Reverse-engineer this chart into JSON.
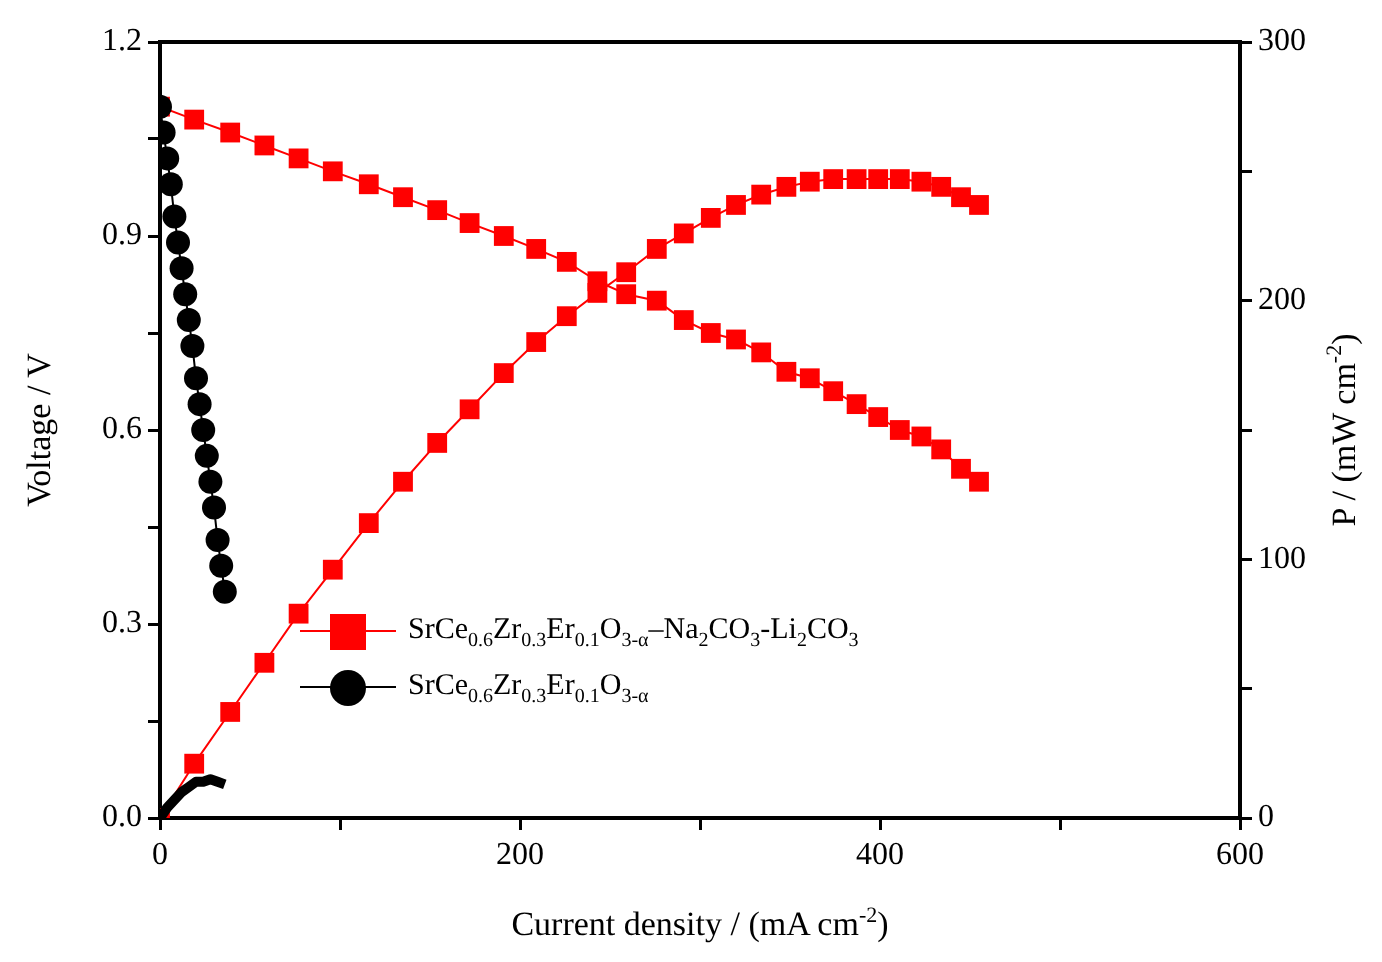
{
  "chart_data": {
    "type": "line",
    "xlabel": "Current density / (mA cm$^{-2}$)",
    "ylabel": "Voltage / V",
    "y2label": "P / (mW cm$^{-2}$)",
    "xlim": [
      0,
      600
    ],
    "xticks": [
      0,
      {
        "value": 100,
        "label": null
      },
      200,
      {
        "value": 300,
        "label": null
      },
      400,
      {
        "value": 500,
        "label": null
      },
      600
    ],
    "ylim": [
      0,
      1.2
    ],
    "yticks": [
      {
        "value": 0,
        "label": "0.0"
      },
      {
        "value": 0.15,
        "label": null
      },
      0.3,
      {
        "value": 0.45,
        "label": null
      },
      0.6,
      {
        "value": 0.75,
        "label": null
      },
      0.9,
      {
        "value": 1.05,
        "label": null
      },
      1.2
    ],
    "y2lim": [
      0,
      300
    ],
    "y2ticks": [
      0,
      {
        "value": 50,
        "label": null
      },
      100,
      {
        "value": 150,
        "label": null
      },
      200,
      {
        "value": 250,
        "label": null
      },
      300
    ],
    "grid": false,
    "legend": "bottom",
    "line_style": "solid",
    "series": [
      {
        "name": "SrCe$_{0.6}$Zr$_{0.3}$Er$_{0.1}$O$_{3-α}$–Na$_{2}$CO$_{3}$-Li$_{2}$CO$_{3}$",
        "color": "#ff0000",
        "marker": "square",
        "x": [
          0,
          19,
          39,
          58,
          77,
          96,
          116,
          135,
          154,
          172,
          191,
          209,
          226,
          243,
          259,
          276,
          291,
          306,
          320,
          334,
          348,
          361,
          374,
          387,
          399,
          411,
          423,
          434,
          445,
          455
        ],
        "values": [
          1.1,
          1.08,
          1.06,
          1.04,
          1.02,
          1.0,
          0.98,
          0.96,
          0.94,
          0.92,
          0.9,
          0.88,
          0.86,
          0.83,
          0.81,
          0.8,
          0.77,
          0.75,
          0.74,
          0.72,
          0.69,
          0.68,
          0.66,
          0.64,
          0.62,
          0.6,
          0.59,
          0.57,
          0.54,
          0.52
        ]
      },
      {
        "color": "#ff0000",
        "marker": "square",
        "axis": "y2",
        "x": [
          0,
          19,
          39,
          58,
          77,
          96,
          116,
          135,
          154,
          172,
          191,
          209,
          226,
          243,
          259,
          276,
          291,
          306,
          320,
          334,
          348,
          361,
          374,
          387,
          399,
          411,
          423,
          434,
          445,
          455
        ],
        "values": [
          0,
          21,
          41,
          60,
          79,
          96,
          114,
          130,
          145,
          158,
          172,
          184,
          194,
          203,
          211,
          220,
          226,
          232,
          237,
          241,
          244,
          246,
          247,
          247,
          247,
          247,
          246,
          244,
          240,
          237
        ]
      },
      {
        "name": "SrCe$_{0.6}$Zr$_{0.3}$Er$_{0.1}$O$_{3-α}$",
        "color": "#000000",
        "marker": "circle",
        "x": [
          0,
          2,
          4,
          6,
          8,
          10,
          12,
          14,
          16,
          18,
          20,
          22,
          24,
          26,
          28,
          30,
          32,
          34,
          36
        ],
        "values": [
          1.1,
          1.06,
          1.02,
          0.98,
          0.93,
          0.89,
          0.85,
          0.81,
          0.77,
          0.73,
          0.68,
          0.64,
          0.6,
          0.56,
          0.52,
          0.48,
          0.43,
          0.39,
          0.35
        ]
      },
      {
        "color": "#000000",
        "marker": "none",
        "axis": "y2",
        "x": [
          0,
          4,
          8,
          12,
          16,
          20,
          24,
          28,
          32,
          36
        ],
        "values": [
          0,
          4,
          7,
          10,
          12,
          14,
          14,
          15,
          14,
          13
        ]
      }
    ]
  }
}
